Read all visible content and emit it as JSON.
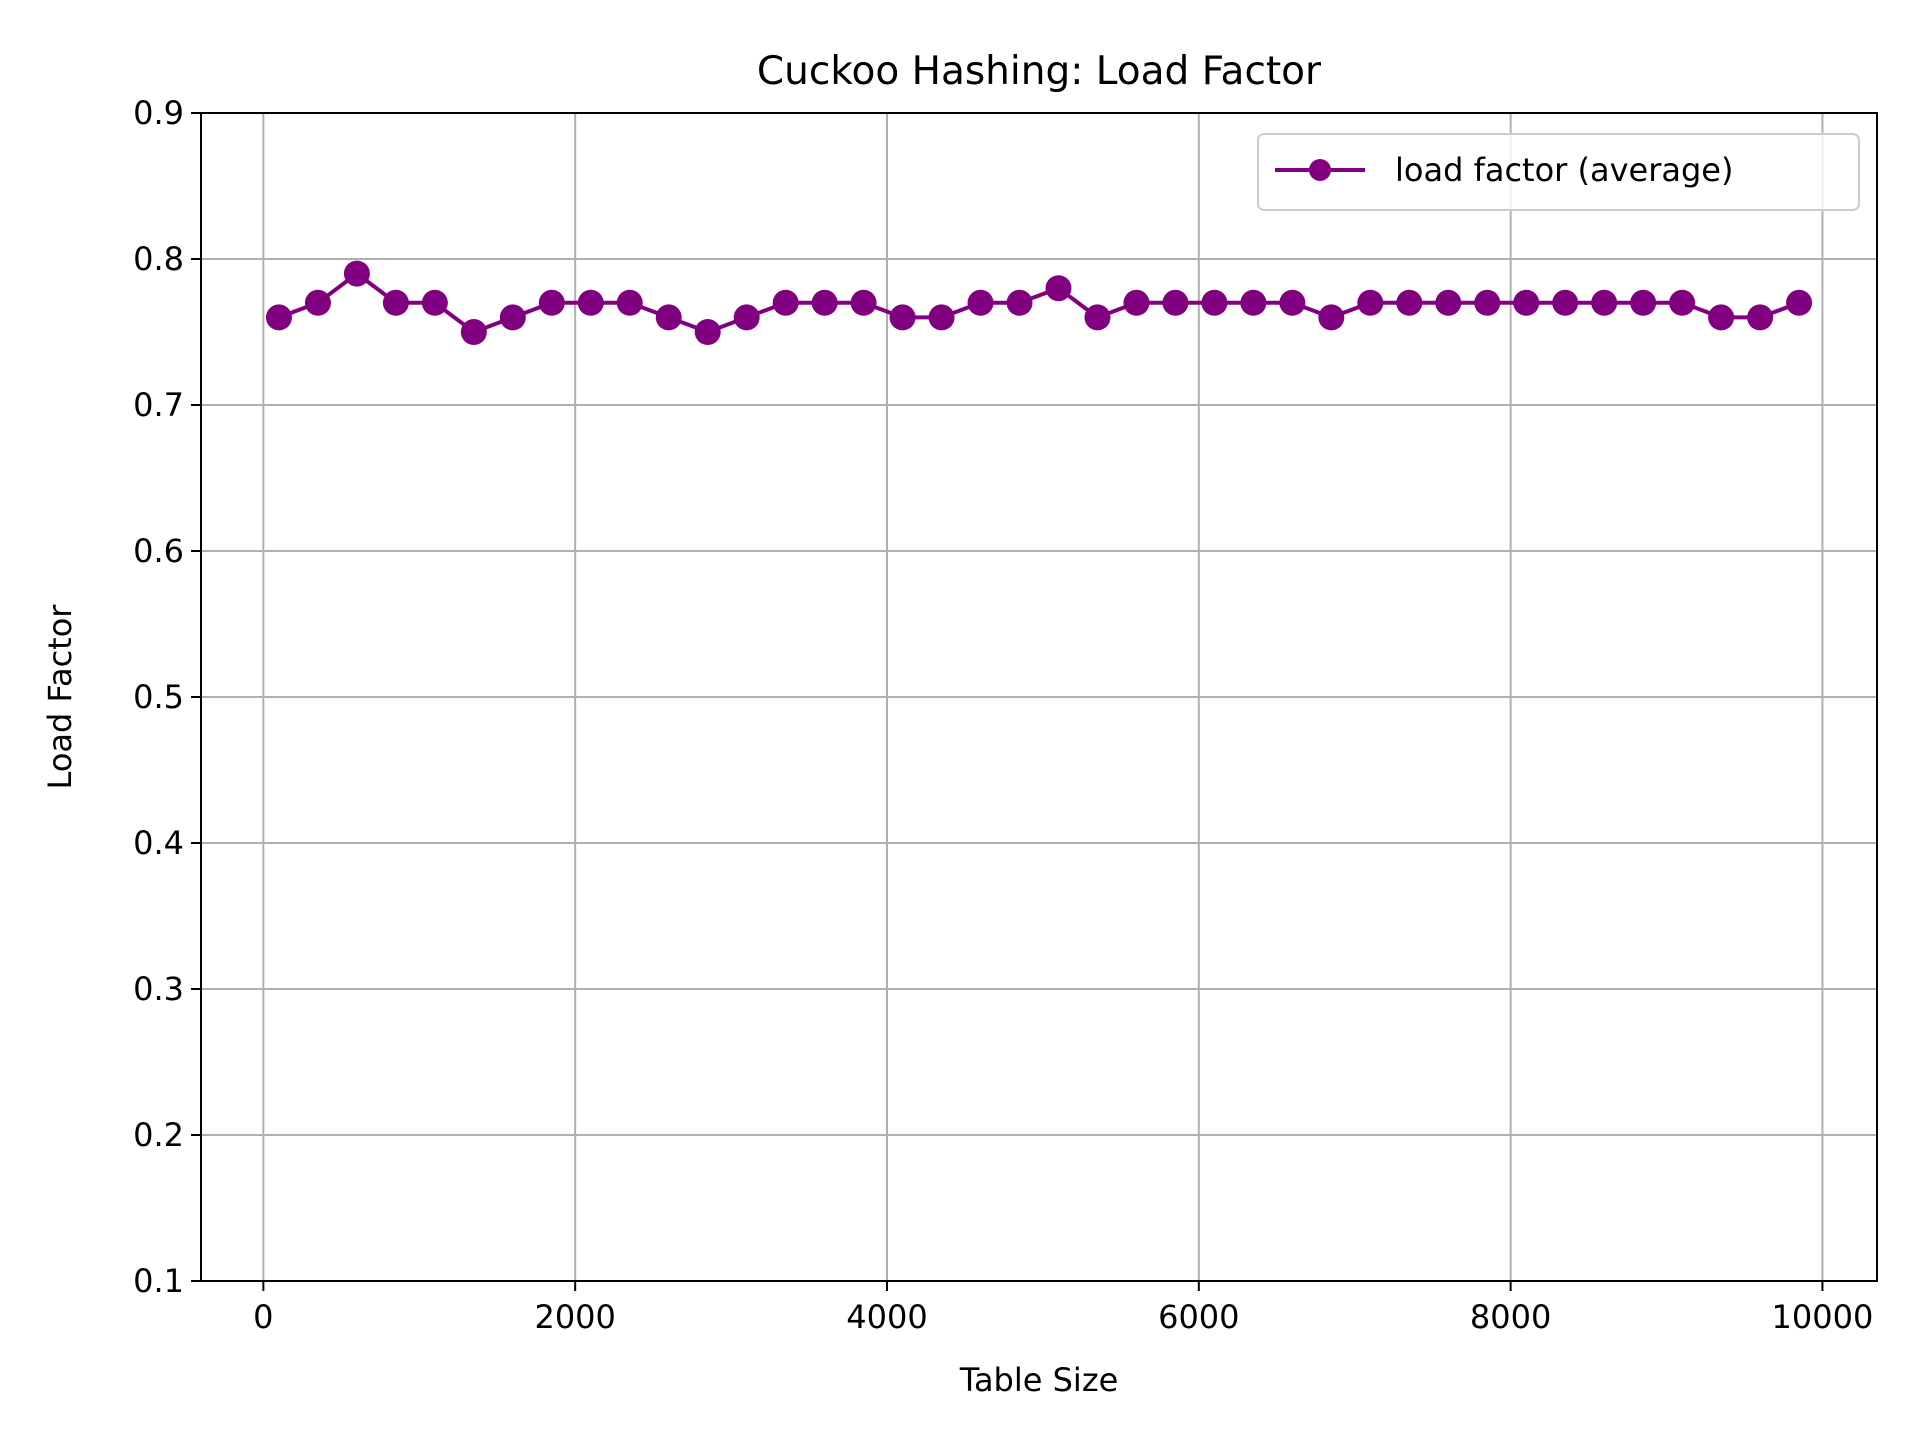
{
  "chart_data": {
    "type": "line",
    "title": "Cuckoo Hashing: Load Factor",
    "xlabel": "Table Size",
    "ylabel": "Load Factor",
    "xlim": [
      -400,
      10350
    ],
    "ylim": [
      0.1,
      0.9
    ],
    "xticks": [
      0,
      2000,
      4000,
      6000,
      8000,
      10000
    ],
    "xtick_labels": [
      "0",
      "2000",
      "4000",
      "6000",
      "8000",
      "10000"
    ],
    "yticks": [
      0.1,
      0.2,
      0.3,
      0.4,
      0.5,
      0.6,
      0.7,
      0.8,
      0.9
    ],
    "ytick_labels": [
      "0.1",
      "0.2",
      "0.3",
      "0.4",
      "0.5",
      "0.6",
      "0.7",
      "0.8",
      "0.9"
    ],
    "grid": true,
    "legend_position": "top-right",
    "x": [
      100,
      350,
      600,
      850,
      1100,
      1350,
      1600,
      1850,
      2100,
      2350,
      2600,
      2850,
      3100,
      3350,
      3600,
      3850,
      4100,
      4350,
      4600,
      4850,
      5100,
      5350,
      5600,
      5850,
      6100,
      6350,
      6600,
      6850,
      7100,
      7350,
      7600,
      7850,
      8100,
      8350,
      8600,
      8850,
      9100,
      9350,
      9600,
      9850
    ],
    "series": [
      {
        "name": "load factor (average)",
        "color": "#800080",
        "marker": "circle",
        "values": [
          0.76,
          0.77,
          0.79,
          0.77,
          0.77,
          0.75,
          0.76,
          0.77,
          0.77,
          0.77,
          0.76,
          0.75,
          0.76,
          0.77,
          0.77,
          0.77,
          0.76,
          0.76,
          0.77,
          0.77,
          0.78,
          0.76,
          0.77,
          0.77,
          0.77,
          0.77,
          0.77,
          0.76,
          0.77,
          0.77,
          0.77,
          0.77,
          0.77,
          0.77,
          0.77,
          0.77,
          0.77,
          0.76,
          0.76,
          0.77
        ]
      }
    ]
  }
}
